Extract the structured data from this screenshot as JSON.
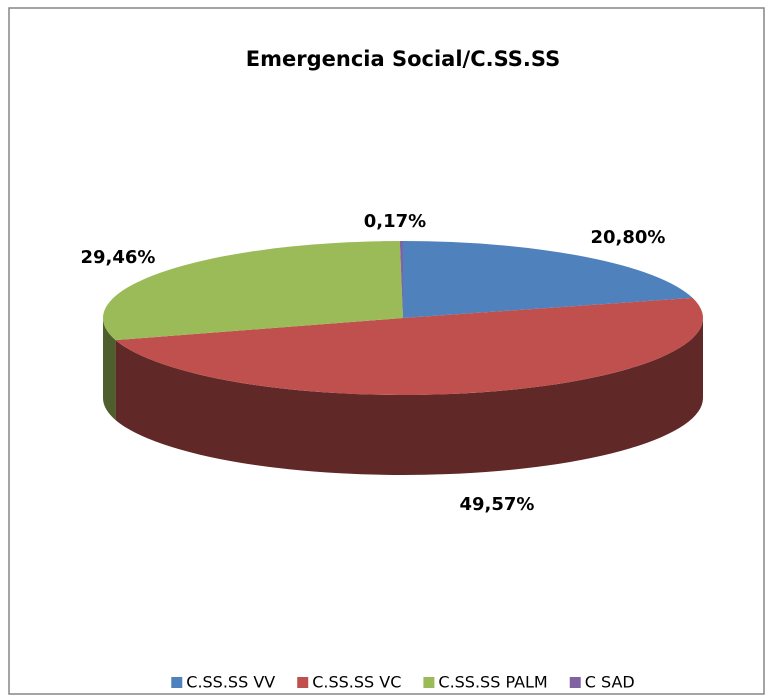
{
  "chart_data": {
    "type": "pie",
    "title": "Emergencia Social/C.SS.SS",
    "categories": [
      "C.SS.SS VV",
      "C.SS.SS VC",
      "C.SS.SS PALM",
      "C SAD"
    ],
    "values": [
      20.8,
      49.57,
      29.46,
      0.17
    ],
    "value_labels": [
      "20,80%",
      "49,57%",
      "29,46%",
      "0,17%"
    ],
    "colors": [
      "#4f81bd",
      "#c0504d",
      "#9bbb59",
      "#8064a2"
    ],
    "legend": "bottom"
  }
}
